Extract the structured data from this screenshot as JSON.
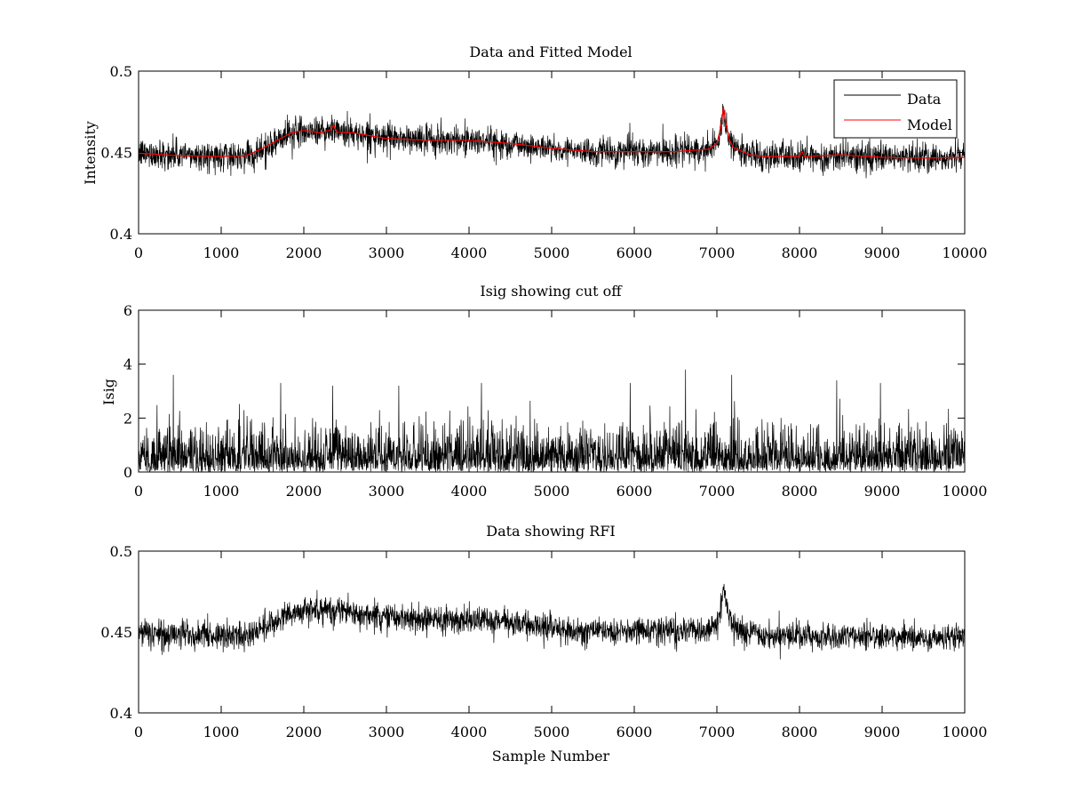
{
  "chart_data": [
    {
      "type": "line",
      "title": "Data and Fitted Model",
      "xlabel": "",
      "ylabel": "Intensity",
      "xlim": [
        0,
        10000
      ],
      "ylim": [
        0.4,
        0.5
      ],
      "xticks": [
        0,
        1000,
        2000,
        3000,
        4000,
        5000,
        6000,
        7000,
        8000,
        9000,
        10000
      ],
      "yticks": [
        0.4,
        0.45,
        0.5
      ],
      "xtick_labels": [
        "0",
        "1000",
        "2000",
        "3000",
        "4000",
        "5000",
        "6000",
        "7000",
        "8000",
        "9000",
        "10000"
      ],
      "ytick_labels": [
        "0.4",
        "0.45",
        "0.5"
      ],
      "legend": {
        "location": "top-right",
        "entries": [
          "Data",
          "Model"
        ]
      },
      "series": [
        {
          "name": "Data",
          "color": "#000000",
          "kind": "noisy",
          "noise_sd": 0.0045,
          "spike_prob": 0.01,
          "spike_amp": 0.006,
          "x": [
            0,
            1000,
            1300,
            1500,
            1700,
            1850,
            2000,
            2200,
            2400,
            2600,
            3000,
            3500,
            4000,
            4500,
            5000,
            5500,
            6000,
            6500,
            6900,
            7000,
            7050,
            7080,
            7100,
            7150,
            7200,
            7400,
            7600,
            8000,
            8500,
            9000,
            9500,
            10000
          ],
          "values": [
            0.4495,
            0.4475,
            0.448,
            0.4525,
            0.458,
            0.462,
            0.4635,
            0.463,
            0.464,
            0.462,
            0.459,
            0.4575,
            0.4575,
            0.4555,
            0.4525,
            0.4505,
            0.4505,
            0.4505,
            0.452,
            0.4555,
            0.466,
            0.4775,
            0.4705,
            0.458,
            0.453,
            0.449,
            0.4475,
            0.4475,
            0.4475,
            0.447,
            0.4465,
            0.447
          ]
        },
        {
          "name": "Model",
          "color": "#ff0000",
          "kind": "smooth",
          "x": [
            0,
            500,
            1000,
            1300,
            1500,
            1700,
            1850,
            2000,
            2200,
            2330,
            2360,
            2400,
            2600,
            3000,
            3500,
            4000,
            4500,
            5000,
            5500,
            6000,
            6500,
            6900,
            7000,
            7050,
            7080,
            7100,
            7150,
            7200,
            7400,
            7600,
            8000,
            8030,
            8060,
            8500,
            9000,
            9500,
            10000
          ],
          "values": [
            0.4495,
            0.448,
            0.4475,
            0.448,
            0.4525,
            0.458,
            0.462,
            0.4635,
            0.462,
            0.464,
            0.467,
            0.4625,
            0.462,
            0.4585,
            0.4575,
            0.4575,
            0.4555,
            0.4525,
            0.4505,
            0.4505,
            0.4505,
            0.452,
            0.4555,
            0.466,
            0.478,
            0.4705,
            0.458,
            0.453,
            0.4485,
            0.4475,
            0.4475,
            0.4505,
            0.4475,
            0.4485,
            0.447,
            0.4465,
            0.447
          ]
        }
      ]
    },
    {
      "type": "line",
      "title": "Isig showing cut off",
      "xlabel": "",
      "ylabel": "Isig",
      "xlim": [
        0,
        10000
      ],
      "ylim": [
        0,
        6
      ],
      "xticks": [
        0,
        1000,
        2000,
        3000,
        4000,
        5000,
        6000,
        7000,
        8000,
        9000,
        10000
      ],
      "yticks": [
        0,
        2,
        4,
        6
      ],
      "xtick_labels": [
        "0",
        "1000",
        "2000",
        "3000",
        "4000",
        "5000",
        "6000",
        "7000",
        "8000",
        "9000",
        "10000"
      ],
      "ytick_labels": [
        "0",
        "2",
        "4",
        "6"
      ],
      "series": [
        {
          "name": "Isig",
          "color": "#000000",
          "kind": "abs-noise",
          "scale": 0.8,
          "max": 3.8,
          "peaks": [
            [
              420,
              3.6
            ],
            [
              1720,
              3.3
            ],
            [
              2350,
              3.2
            ],
            [
              3150,
              3.2
            ],
            [
              4150,
              3.3
            ],
            [
              5950,
              3.3
            ],
            [
              6620,
              3.8
            ],
            [
              7180,
              3.6
            ],
            [
              8450,
              3.4
            ],
            [
              8980,
              3.3
            ]
          ],
          "x": [
            0,
            10000
          ],
          "values": [
            0.8,
            0.8
          ]
        }
      ]
    },
    {
      "type": "line",
      "title": "Data showing RFI",
      "xlabel": "Sample Number",
      "ylabel": "",
      "xlim": [
        0,
        10000
      ],
      "ylim": [
        0.4,
        0.5
      ],
      "xticks": [
        0,
        1000,
        2000,
        3000,
        4000,
        5000,
        6000,
        7000,
        8000,
        9000,
        10000
      ],
      "yticks": [
        0.4,
        0.45,
        0.5
      ],
      "xtick_labels": [
        "0",
        "1000",
        "2000",
        "3000",
        "4000",
        "5000",
        "6000",
        "7000",
        "8000",
        "9000",
        "10000"
      ],
      "ytick_labels": [
        "0.4",
        "0.45",
        "0.5"
      ],
      "series": [
        {
          "name": "Data",
          "color": "#000000",
          "kind": "noisy",
          "noise_sd": 0.0042,
          "spike_prob": 0.008,
          "spike_amp": 0.005,
          "x": [
            0,
            1000,
            1300,
            1500,
            1700,
            1850,
            2000,
            2200,
            2400,
            2600,
            3000,
            3500,
            4000,
            4500,
            5000,
            5500,
            6000,
            6500,
            6900,
            7000,
            7050,
            7080,
            7100,
            7150,
            7200,
            7400,
            7600,
            8000,
            8500,
            9000,
            9500,
            10000
          ],
          "values": [
            0.4495,
            0.4475,
            0.448,
            0.4525,
            0.458,
            0.462,
            0.4635,
            0.463,
            0.464,
            0.462,
            0.459,
            0.4575,
            0.4575,
            0.4555,
            0.4525,
            0.4505,
            0.4505,
            0.4505,
            0.452,
            0.4555,
            0.466,
            0.4775,
            0.4705,
            0.458,
            0.453,
            0.449,
            0.4475,
            0.4475,
            0.4475,
            0.447,
            0.4465,
            0.447
          ]
        }
      ]
    }
  ]
}
